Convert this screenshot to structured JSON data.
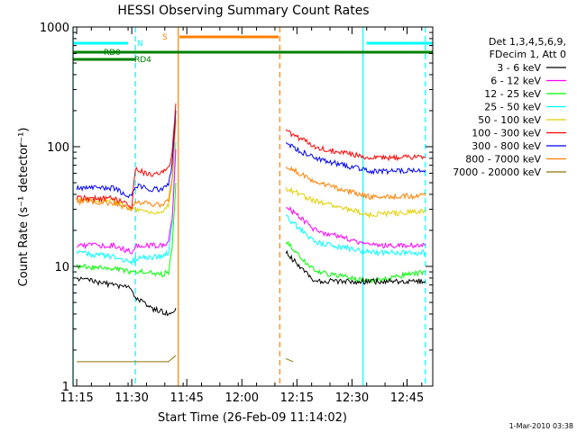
{
  "chart_data": {
    "type": "line",
    "title": "HESSI Observing Summary Count Rates",
    "xlabel": "Start Time (26-Feb-09 11:14:02)",
    "ylabel": "Count Rate (s⁻¹ detector⁻¹)",
    "yscale": "log",
    "ylim": [
      1,
      1000
    ],
    "xlim": [
      "11:14",
      "12:52"
    ],
    "x_ticks": [
      "11:15",
      "11:30",
      "11:45",
      "12:00",
      "12:15",
      "12:30",
      "12:45"
    ],
    "y_ticks": [
      "1",
      "10",
      "100",
      "1000"
    ],
    "legend_position": "right",
    "legend_header": [
      "Det 1,3,4,5,6,9,",
      "FDecim 1, Att 0"
    ],
    "timestamp": "1-Mar-2010 03:38",
    "colors": {
      "3-6": "#000000",
      "6-12": "#ff00ff",
      "12-25": "#00ff00",
      "25-50": "#00ffff",
      "50-100": "#e0d000",
      "100-300": "#ff0000",
      "300-800": "#0000ff",
      "800-7000": "#ff8000",
      "7000-20000": "#8b7500",
      "night": "#00ffff",
      "saa": "#ff8000",
      "rd": "#008000"
    },
    "markers": {
      "night_label": "N",
      "saa_label": "S",
      "rd0_label": "RD0",
      "rd4_label": "RD4",
      "night_boundaries": [
        "11:14:02",
        "11:31:00",
        "12:33:00",
        "12:50:00"
      ],
      "saa_boundaries": [
        "11:42:40",
        "12:10:20"
      ],
      "night_bars": [
        [
          "11:14",
          "11:29"
        ],
        [
          "12:34",
          "12:52"
        ]
      ],
      "saa_bar": [
        "11:43",
        "12:10"
      ],
      "rd0_bar": [
        "11:14",
        "12:52"
      ],
      "rd4_bar": [
        "11:14",
        "11:31"
      ]
    },
    "series": [
      {
        "name": "3 - 6 keV",
        "x": [
          "11:15",
          "11:25",
          "11:30",
          "11:31",
          "11:35",
          "11:40",
          "11:42",
          "12:12",
          "12:20",
          "12:35",
          "12:50"
        ],
        "y": [
          8,
          7,
          6.5,
          5.5,
          4.5,
          4,
          4.5,
          13,
          7.5,
          7.5,
          7.5
        ]
      },
      {
        "name": "6 - 12 keV",
        "x": [
          "11:15",
          "11:25",
          "11:30",
          "11:31",
          "11:35",
          "11:38",
          "11:40",
          "11:41",
          "11:42",
          "12:12",
          "12:20",
          "12:35",
          "12:50"
        ],
        "y": [
          15,
          15,
          13,
          15,
          15,
          15,
          16,
          25,
          95,
          32,
          20,
          15,
          15
        ]
      },
      {
        "name": "12 - 25 keV",
        "x": [
          "11:15",
          "11:25",
          "11:30",
          "11:31",
          "11:35",
          "11:38",
          "11:40",
          "11:41",
          "11:42",
          "12:12",
          "12:20",
          "12:35",
          "12:50"
        ],
        "y": [
          10,
          9.5,
          9,
          9,
          9,
          8.5,
          9,
          14,
          50,
          16,
          9,
          7.5,
          9
        ]
      },
      {
        "name": "25 - 50 keV",
        "x": [
          "11:15",
          "11:25",
          "11:30",
          "11:31",
          "11:35",
          "11:38",
          "11:40",
          "11:41",
          "11:42",
          "12:12",
          "12:20",
          "12:35",
          "12:50"
        ],
        "y": [
          13,
          12,
          11,
          11.5,
          12,
          12,
          13,
          22,
          110,
          26,
          16,
          13,
          13
        ]
      },
      {
        "name": "50 - 100 keV",
        "x": [
          "11:15",
          "11:25",
          "11:30",
          "11:31",
          "11:35",
          "11:38",
          "11:40",
          "11:41",
          "11:42",
          "12:12",
          "12:20",
          "12:35",
          "12:50"
        ],
        "y": [
          36,
          35,
          30,
          30,
          28,
          29,
          32,
          50,
          160,
          45,
          35,
          27,
          29
        ]
      },
      {
        "name": "100 - 300 keV",
        "x": [
          "11:15",
          "11:25",
          "11:30",
          "11:31",
          "11:35",
          "11:38",
          "11:40",
          "11:41",
          "11:42",
          "12:12",
          "12:20",
          "12:35",
          "12:50"
        ],
        "y": [
          37,
          37,
          32,
          65,
          58,
          60,
          65,
          90,
          230,
          135,
          100,
          80,
          82
        ]
      },
      {
        "name": "300 - 800 keV",
        "x": [
          "11:15",
          "11:25",
          "11:30",
          "11:31",
          "11:35",
          "11:38",
          "11:40",
          "11:41",
          "11:42",
          "12:12",
          "12:20",
          "12:35",
          "12:50"
        ],
        "y": [
          45,
          45,
          38,
          48,
          44,
          44,
          48,
          70,
          200,
          105,
          80,
          62,
          64
        ]
      },
      {
        "name": "800 - 7000 keV",
        "x": [
          "11:15",
          "11:25",
          "11:30",
          "11:31",
          "11:35",
          "11:38",
          "11:40",
          "11:41",
          "11:42",
          "12:12",
          "12:20",
          "12:35",
          "12:50"
        ],
        "y": [
          35,
          34,
          30,
          35,
          33,
          33,
          35,
          55,
          170,
          70,
          50,
          38,
          39
        ]
      },
      {
        "name": "7000 - 20000 keV",
        "x": [
          "11:15",
          "11:25",
          "11:30",
          "11:40",
          "11:42",
          "12:12",
          "12:14"
        ],
        "y": [
          1.6,
          1.6,
          1.6,
          1.6,
          1.8,
          1.7,
          1.6
        ]
      }
    ]
  }
}
